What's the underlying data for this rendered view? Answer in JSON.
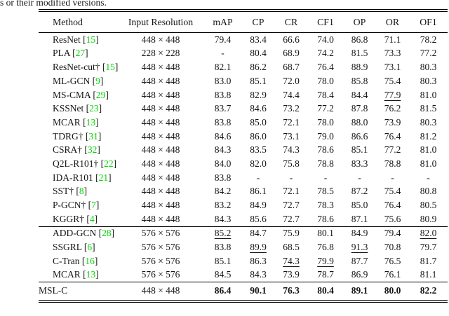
{
  "caption": "s or their modified versions.",
  "colors": {
    "citation_green": "#00d500",
    "text": "#151515",
    "background": "#ffffff"
  },
  "table": {
    "columns": [
      "Method",
      "Input Resolution",
      "mAP",
      "CP",
      "CR",
      "CF1",
      "OP",
      "OR",
      "OF1"
    ],
    "groups": [
      {
        "rows": [
          {
            "method": "ResNet",
            "cite": "15",
            "resolution": "448 × 448",
            "values": [
              "79.4",
              "83.4",
              "66.6",
              "74.0",
              "86.8",
              "71.1",
              "78.2"
            ],
            "underline": [],
            "bold": false
          },
          {
            "method": "PLA",
            "cite": "27",
            "resolution": "228 × 228",
            "values": [
              "-",
              "80.4",
              "68.9",
              "74.2",
              "81.5",
              "73.3",
              "77.2"
            ],
            "underline": [],
            "bold": false
          },
          {
            "method": "ResNet-cut†",
            "cite": "15",
            "resolution": "448 × 448",
            "values": [
              "82.1",
              "86.2",
              "68.7",
              "76.4",
              "88.9",
              "73.1",
              "80.3"
            ],
            "underline": [],
            "bold": false
          },
          {
            "method": "ML-GCN",
            "cite": "9",
            "resolution": "448 × 448",
            "values": [
              "83.0",
              "85.1",
              "72.0",
              "78.0",
              "85.8",
              "75.4",
              "80.3"
            ],
            "underline": [],
            "bold": false
          },
          {
            "method": "MS-CMA",
            "cite": "29",
            "resolution": "448 × 448",
            "values": [
              "83.8",
              "82.9",
              "74.4",
              "78.4",
              "84.4",
              "77.9",
              "81.0"
            ],
            "underline": [
              5
            ],
            "bold": false
          },
          {
            "method": "KSSNet",
            "cite": "23",
            "resolution": "448 × 448",
            "values": [
              "83.7",
              "84.6",
              "73.2",
              "77.2",
              "87.8",
              "76.2",
              "81.5"
            ],
            "underline": [],
            "bold": false
          },
          {
            "method": "MCAR",
            "cite": "13",
            "resolution": "448 × 448",
            "values": [
              "83.8",
              "85.0",
              "72.1",
              "78.0",
              "88.0",
              "73.9",
              "80.3"
            ],
            "underline": [],
            "bold": false
          },
          {
            "method": "TDRG†",
            "cite": "31",
            "resolution": "448 × 448",
            "values": [
              "84.6",
              "86.0",
              "73.1",
              "79.0",
              "86.6",
              "76.4",
              "81.2"
            ],
            "underline": [],
            "bold": false
          },
          {
            "method": "CSRA†",
            "cite": "32",
            "resolution": "448 × 448",
            "values": [
              "84.3",
              "83.5",
              "74.3",
              "78.6",
              "85.1",
              "77.2",
              "81.0"
            ],
            "underline": [],
            "bold": false
          },
          {
            "method": "Q2L-R101†",
            "cite": "22",
            "resolution": "448 × 448",
            "values": [
              "84.0",
              "82.0",
              "75.8",
              "78.8",
              "83.3",
              "78.8",
              "81.0"
            ],
            "underline": [],
            "bold": false
          },
          {
            "method": "IDA-R101",
            "cite": "21",
            "resolution": "448 × 448",
            "values": [
              "83.8",
              "-",
              "-",
              "-",
              "-",
              "-",
              "-"
            ],
            "underline": [],
            "bold": false
          },
          {
            "method": "SST†",
            "cite": "8",
            "resolution": "448 × 448",
            "values": [
              "84.2",
              "86.1",
              "72.1",
              "78.5",
              "87.2",
              "75.4",
              "80.8"
            ],
            "underline": [],
            "bold": false
          },
          {
            "method": "P-GCN†",
            "cite": "7",
            "resolution": "448 × 448",
            "values": [
              "83.2",
              "84.9",
              "72.7",
              "78.3",
              "85.0",
              "76.4",
              "80.5"
            ],
            "underline": [],
            "bold": false
          },
          {
            "method": "KGGR†",
            "cite": "4",
            "resolution": "448 × 448",
            "values": [
              "84.3",
              "85.6",
              "72.7",
              "78.6",
              "87.1",
              "75.6",
              "80.9"
            ],
            "underline": [],
            "bold": false
          }
        ]
      },
      {
        "rows": [
          {
            "method": "ADD-GCN",
            "cite": "28",
            "resolution": "576 × 576",
            "values": [
              "85.2",
              "84.7",
              "75.9",
              "80.1",
              "84.9",
              "79.4",
              "82.0"
            ],
            "underline": [
              0,
              6
            ],
            "bold": false
          },
          {
            "method": "SSGRL",
            "cite": "6",
            "resolution": "576 × 576",
            "values": [
              "83.8",
              "89.9",
              "68.5",
              "76.8",
              "91.3",
              "70.8",
              "79.7"
            ],
            "underline": [
              1,
              4
            ],
            "bold": false
          },
          {
            "method": "C-Tran",
            "cite": "16",
            "resolution": "576 × 576",
            "values": [
              "85.1",
              "86.3",
              "74.3",
              "79.9",
              "87.7",
              "76.5",
              "81.7"
            ],
            "underline": [
              2,
              3
            ],
            "bold": false
          },
          {
            "method": "MCAR",
            "cite": "13",
            "resolution": "576 × 576",
            "values": [
              "84.5",
              "84.3",
              "73.9",
              "78.7",
              "86.9",
              "76.1",
              "81.1"
            ],
            "underline": [],
            "bold": false
          }
        ]
      },
      {
        "rows": [
          {
            "method": "MSL-C",
            "cite": null,
            "resolution": "448 × 448",
            "values": [
              "86.4",
              "90.1",
              "76.3",
              "80.4",
              "89.1",
              "80.0",
              "82.2"
            ],
            "underline": [],
            "bold": true
          }
        ]
      }
    ]
  }
}
